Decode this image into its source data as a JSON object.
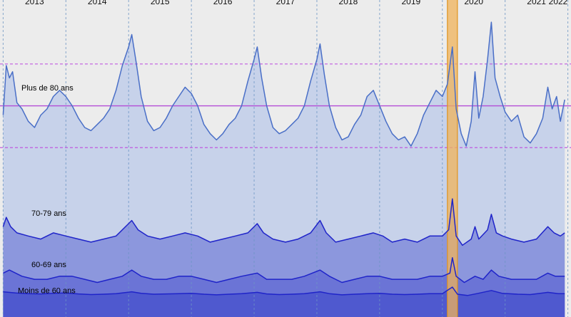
{
  "chart_data": {
    "type": "area",
    "x_ticks": [
      "2013",
      "2014",
      "2015",
      "2016",
      "2017",
      "2018",
      "2019",
      "2020",
      "2021",
      "2022"
    ],
    "xlim": [
      2012.95,
      2022.05
    ],
    "data_xlim": [
      2013.0,
      2021.95
    ],
    "ylim": [
      0,
      100
    ],
    "grid": "vertical dashed lines at each year",
    "reference_lines": {
      "mean": 67.0,
      "upper": 80.5,
      "lower": 53.5
    },
    "highlight_band": {
      "start": 2020.08,
      "end": 2020.24,
      "label": ""
    },
    "series": [
      {
        "name": "Plus de 80 ans",
        "color": "#4a6fc7",
        "fill": "#c7d2ea",
        "points": [
          [
            2013.0,
            64
          ],
          [
            2013.05,
            80
          ],
          [
            2013.1,
            76
          ],
          [
            2013.15,
            78
          ],
          [
            2013.22,
            68
          ],
          [
            2013.3,
            66
          ],
          [
            2013.4,
            62
          ],
          [
            2013.5,
            60
          ],
          [
            2013.6,
            64
          ],
          [
            2013.7,
            66
          ],
          [
            2013.8,
            70
          ],
          [
            2013.9,
            72
          ],
          [
            2014.0,
            70
          ],
          [
            2014.1,
            67
          ],
          [
            2014.2,
            63
          ],
          [
            2014.3,
            60
          ],
          [
            2014.4,
            59
          ],
          [
            2014.5,
            61
          ],
          [
            2014.6,
            63
          ],
          [
            2014.7,
            66
          ],
          [
            2014.8,
            72
          ],
          [
            2014.9,
            80
          ],
          [
            2015.0,
            86
          ],
          [
            2015.05,
            90
          ],
          [
            2015.12,
            81
          ],
          [
            2015.2,
            70
          ],
          [
            2015.3,
            62
          ],
          [
            2015.4,
            59
          ],
          [
            2015.5,
            60
          ],
          [
            2015.6,
            63
          ],
          [
            2015.7,
            67
          ],
          [
            2015.8,
            70
          ],
          [
            2015.9,
            73
          ],
          [
            2016.0,
            71
          ],
          [
            2016.1,
            67
          ],
          [
            2016.2,
            61
          ],
          [
            2016.3,
            58
          ],
          [
            2016.4,
            56
          ],
          [
            2016.5,
            58
          ],
          [
            2016.6,
            61
          ],
          [
            2016.7,
            63
          ],
          [
            2016.8,
            67
          ],
          [
            2016.9,
            75
          ],
          [
            2017.0,
            82
          ],
          [
            2017.05,
            86
          ],
          [
            2017.12,
            76
          ],
          [
            2017.2,
            67
          ],
          [
            2017.3,
            60
          ],
          [
            2017.4,
            58
          ],
          [
            2017.5,
            59
          ],
          [
            2017.6,
            61
          ],
          [
            2017.7,
            63
          ],
          [
            2017.8,
            67
          ],
          [
            2017.9,
            75
          ],
          [
            2018.0,
            82
          ],
          [
            2018.05,
            87
          ],
          [
            2018.12,
            77
          ],
          [
            2018.2,
            67
          ],
          [
            2018.3,
            60
          ],
          [
            2018.4,
            56
          ],
          [
            2018.5,
            57
          ],
          [
            2018.6,
            61
          ],
          [
            2018.7,
            64
          ],
          [
            2018.8,
            70
          ],
          [
            2018.9,
            72
          ],
          [
            2019.0,
            67
          ],
          [
            2019.1,
            62
          ],
          [
            2019.2,
            58
          ],
          [
            2019.3,
            56
          ],
          [
            2019.4,
            57
          ],
          [
            2019.5,
            54
          ],
          [
            2019.6,
            58
          ],
          [
            2019.7,
            64
          ],
          [
            2019.8,
            68
          ],
          [
            2019.9,
            72
          ],
          [
            2020.0,
            70
          ],
          [
            2020.08,
            74
          ],
          [
            2020.16,
            86
          ],
          [
            2020.22,
            66
          ],
          [
            2020.3,
            58
          ],
          [
            2020.38,
            54
          ],
          [
            2020.46,
            62
          ],
          [
            2020.52,
            78
          ],
          [
            2020.58,
            63
          ],
          [
            2020.65,
            70
          ],
          [
            2020.72,
            82
          ],
          [
            2020.78,
            94
          ],
          [
            2020.84,
            76
          ],
          [
            2020.92,
            70
          ],
          [
            2021.0,
            65
          ],
          [
            2021.1,
            62
          ],
          [
            2021.2,
            64
          ],
          [
            2021.3,
            57
          ],
          [
            2021.4,
            55
          ],
          [
            2021.5,
            58
          ],
          [
            2021.6,
            63
          ],
          [
            2021.68,
            73
          ],
          [
            2021.75,
            66
          ],
          [
            2021.82,
            70
          ],
          [
            2021.88,
            62
          ],
          [
            2021.95,
            69
          ]
        ]
      },
      {
        "name": "70-79 ans",
        "color": "#1f24c9",
        "fill": "#8c97dd",
        "points": [
          [
            2013.0,
            28
          ],
          [
            2013.05,
            31
          ],
          [
            2013.12,
            28
          ],
          [
            2013.22,
            26
          ],
          [
            2013.4,
            25
          ],
          [
            2013.6,
            24
          ],
          [
            2013.8,
            26
          ],
          [
            2014.0,
            25
          ],
          [
            2014.2,
            24
          ],
          [
            2014.4,
            23
          ],
          [
            2014.6,
            24
          ],
          [
            2014.8,
            25
          ],
          [
            2015.0,
            29
          ],
          [
            2015.05,
            30
          ],
          [
            2015.15,
            27
          ],
          [
            2015.3,
            25
          ],
          [
            2015.5,
            24
          ],
          [
            2015.7,
            25
          ],
          [
            2015.9,
            26
          ],
          [
            2016.1,
            25
          ],
          [
            2016.3,
            23
          ],
          [
            2016.5,
            24
          ],
          [
            2016.7,
            25
          ],
          [
            2016.9,
            26
          ],
          [
            2017.05,
            29
          ],
          [
            2017.15,
            26
          ],
          [
            2017.3,
            24
          ],
          [
            2017.5,
            23
          ],
          [
            2017.7,
            24
          ],
          [
            2017.9,
            26
          ],
          [
            2018.05,
            30
          ],
          [
            2018.15,
            26
          ],
          [
            2018.3,
            23
          ],
          [
            2018.5,
            24
          ],
          [
            2018.7,
            25
          ],
          [
            2018.9,
            26
          ],
          [
            2019.05,
            25
          ],
          [
            2019.2,
            23
          ],
          [
            2019.4,
            24
          ],
          [
            2019.6,
            23
          ],
          [
            2019.8,
            25
          ],
          [
            2020.0,
            25
          ],
          [
            2020.1,
            27
          ],
          [
            2020.16,
            37
          ],
          [
            2020.22,
            25
          ],
          [
            2020.32,
            22
          ],
          [
            2020.46,
            24
          ],
          [
            2020.52,
            28
          ],
          [
            2020.58,
            24
          ],
          [
            2020.72,
            27
          ],
          [
            2020.78,
            32
          ],
          [
            2020.86,
            26
          ],
          [
            2020.96,
            25
          ],
          [
            2021.1,
            24
          ],
          [
            2021.3,
            23
          ],
          [
            2021.5,
            24
          ],
          [
            2021.68,
            28
          ],
          [
            2021.78,
            26
          ],
          [
            2021.88,
            25
          ],
          [
            2021.95,
            26
          ]
        ]
      },
      {
        "name": "60-69 ans",
        "color": "#1f24c9",
        "fill": "#6b74d6",
        "points": [
          [
            2013.0,
            13
          ],
          [
            2013.1,
            14
          ],
          [
            2013.3,
            12
          ],
          [
            2013.5,
            11
          ],
          [
            2013.7,
            11
          ],
          [
            2013.9,
            12
          ],
          [
            2014.1,
            12
          ],
          [
            2014.3,
            11
          ],
          [
            2014.5,
            10
          ],
          [
            2014.7,
            11
          ],
          [
            2014.9,
            12
          ],
          [
            2015.05,
            14
          ],
          [
            2015.2,
            12
          ],
          [
            2015.4,
            11
          ],
          [
            2015.6,
            11
          ],
          [
            2015.8,
            12
          ],
          [
            2016.0,
            12
          ],
          [
            2016.2,
            11
          ],
          [
            2016.4,
            10
          ],
          [
            2016.6,
            11
          ],
          [
            2016.8,
            12
          ],
          [
            2017.05,
            13
          ],
          [
            2017.2,
            11
          ],
          [
            2017.4,
            11
          ],
          [
            2017.6,
            11
          ],
          [
            2017.8,
            12
          ],
          [
            2018.05,
            14
          ],
          [
            2018.2,
            12
          ],
          [
            2018.4,
            10
          ],
          [
            2018.6,
            11
          ],
          [
            2018.8,
            12
          ],
          [
            2019.0,
            12
          ],
          [
            2019.2,
            11
          ],
          [
            2019.4,
            11
          ],
          [
            2019.6,
            11
          ],
          [
            2019.8,
            12
          ],
          [
            2020.0,
            12
          ],
          [
            2020.12,
            13
          ],
          [
            2020.16,
            18
          ],
          [
            2020.22,
            12
          ],
          [
            2020.35,
            10
          ],
          [
            2020.52,
            12
          ],
          [
            2020.65,
            11
          ],
          [
            2020.78,
            14
          ],
          [
            2020.9,
            12
          ],
          [
            2021.1,
            11
          ],
          [
            2021.3,
            11
          ],
          [
            2021.5,
            11
          ],
          [
            2021.68,
            13
          ],
          [
            2021.8,
            12
          ],
          [
            2021.95,
            12
          ]
        ]
      },
      {
        "name": "Moins de 60 ans",
        "color": "#1f24c9",
        "fill": "#4f59cf",
        "points": [
          [
            2013.0,
            7
          ],
          [
            2013.2,
            6.6
          ],
          [
            2013.4,
            6.4
          ],
          [
            2013.6,
            6.3
          ],
          [
            2013.8,
            6.5
          ],
          [
            2014.0,
            6.6
          ],
          [
            2014.2,
            6.3
          ],
          [
            2014.4,
            6.1
          ],
          [
            2014.6,
            6.2
          ],
          [
            2014.8,
            6.4
          ],
          [
            2015.05,
            7.0
          ],
          [
            2015.2,
            6.5
          ],
          [
            2015.4,
            6.2
          ],
          [
            2015.6,
            6.3
          ],
          [
            2015.8,
            6.4
          ],
          [
            2016.0,
            6.5
          ],
          [
            2016.2,
            6.2
          ],
          [
            2016.4,
            6.0
          ],
          [
            2016.6,
            6.2
          ],
          [
            2016.8,
            6.4
          ],
          [
            2017.05,
            6.8
          ],
          [
            2017.2,
            6.3
          ],
          [
            2017.4,
            6.1
          ],
          [
            2017.6,
            6.2
          ],
          [
            2017.8,
            6.4
          ],
          [
            2018.05,
            7.0
          ],
          [
            2018.2,
            6.4
          ],
          [
            2018.4,
            6.0
          ],
          [
            2018.6,
            6.2
          ],
          [
            2018.8,
            6.4
          ],
          [
            2019.0,
            6.5
          ],
          [
            2019.2,
            6.2
          ],
          [
            2019.4,
            6.1
          ],
          [
            2019.6,
            6.2
          ],
          [
            2019.8,
            6.4
          ],
          [
            2020.0,
            6.4
          ],
          [
            2020.16,
            8.5
          ],
          [
            2020.24,
            6.2
          ],
          [
            2020.4,
            5.8
          ],
          [
            2020.55,
            6.4
          ],
          [
            2020.78,
            7.4
          ],
          [
            2020.95,
            6.5
          ],
          [
            2021.2,
            6.2
          ],
          [
            2021.4,
            6.1
          ],
          [
            2021.68,
            6.8
          ],
          [
            2021.85,
            6.4
          ],
          [
            2021.95,
            6.4
          ]
        ]
      }
    ],
    "label_colors": {
      "mean_line": "#b44cd6",
      "band_line": "#c05ae0",
      "grid": "#6d95c4",
      "highlight_fill": "#f0b35a",
      "highlight_edge": "#e0941e"
    }
  }
}
